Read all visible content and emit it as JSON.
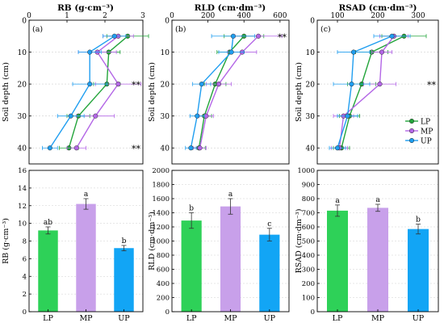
{
  "chart_data": [
    {
      "type": "line",
      "panel": "(a)",
      "title": "RB (g·cm⁻³)",
      "ylabel": "Soil depth (cm)",
      "xlim": [
        0,
        3
      ],
      "xticks": [
        0,
        1,
        2,
        3
      ],
      "ylim": [
        0,
        45
      ],
      "yticks": [
        0,
        10,
        20,
        30,
        40
      ],
      "y": [
        5,
        10,
        20,
        30,
        40
      ],
      "series": [
        {
          "name": "LP",
          "color": "#22a43a",
          "values": [
            2.6,
            2.1,
            2.05,
            1.3,
            1.05
          ],
          "err": [
            0.55,
            0.3,
            0.35,
            0.3,
            0.25
          ]
        },
        {
          "name": "MP",
          "color": "#b366e6",
          "values": [
            2.35,
            1.8,
            2.35,
            1.75,
            1.25
          ],
          "err": [
            0.4,
            0.5,
            0.6,
            0.5,
            0.25
          ]
        },
        {
          "name": "UP",
          "color": "#1f9ef0",
          "values": [
            2.25,
            1.6,
            1.6,
            1.1,
            0.55
          ],
          "err": [
            0.3,
            0.3,
            0.45,
            0.35,
            0.2
          ]
        }
      ],
      "annotations": [
        {
          "text": "**",
          "y": 20
        },
        {
          "text": "**",
          "y": 40
        }
      ]
    },
    {
      "type": "line",
      "panel": "(b)",
      "title": "RLD (cm·dm⁻³)",
      "ylabel": "Soil depth (cm)",
      "xlim": [
        0,
        650
      ],
      "xticks": [
        0,
        200,
        400,
        600
      ],
      "ylim": [
        0,
        45
      ],
      "yticks": [
        0,
        10,
        20,
        30,
        40
      ],
      "y": [
        5,
        10,
        20,
        30,
        40
      ],
      "series": [
        {
          "name": "LP",
          "color": "#22a43a",
          "values": [
            400,
            320,
            240,
            180,
            150
          ],
          "err": [
            110,
            70,
            60,
            40,
            35
          ]
        },
        {
          "name": "MP",
          "color": "#b366e6",
          "values": [
            480,
            390,
            260,
            190,
            155
          ],
          "err": [
            130,
            80,
            70,
            40,
            35
          ]
        },
        {
          "name": "UP",
          "color": "#1f9ef0",
          "values": [
            340,
            330,
            165,
            140,
            105
          ],
          "err": [
            120,
            70,
            50,
            40,
            30
          ]
        }
      ],
      "annotations": [
        {
          "text": "**",
          "y": 5
        }
      ]
    },
    {
      "type": "line",
      "panel": "(c)",
      "title": "RSAD (cm·dm⁻³)",
      "ylabel": "Soil depth (cm)",
      "xlim": [
        50,
        350
      ],
      "xticks": [
        100,
        200,
        300
      ],
      "ylim": [
        0,
        45
      ],
      "yticks": [
        0,
        10,
        20,
        30,
        40
      ],
      "y": [
        5,
        10,
        20,
        30,
        40
      ],
      "series": [
        {
          "name": "LP",
          "color": "#22a43a",
          "values": [
            265,
            185,
            160,
            130,
            110
          ],
          "err": [
            55,
            40,
            35,
            25,
            20
          ]
        },
        {
          "name": "MP",
          "color": "#b366e6",
          "values": [
            240,
            210,
            205,
            115,
            105
          ],
          "err": [
            35,
            25,
            40,
            25,
            20
          ]
        },
        {
          "name": "UP",
          "color": "#1f9ef0",
          "values": [
            235,
            140,
            135,
            125,
            100
          ],
          "err": [
            45,
            40,
            45,
            25,
            20
          ]
        }
      ],
      "annotations": [
        {
          "text": "**",
          "y": 20
        }
      ],
      "legend": {
        "placement": "bottom-right",
        "entries": [
          "LP",
          "MP",
          "UP"
        ]
      }
    },
    {
      "type": "bar",
      "ylabel": "RB (g·cm⁻³)",
      "categories": [
        "LP",
        "MP",
        "UP"
      ],
      "values": [
        9.2,
        12.2,
        7.2
      ],
      "err": [
        0.4,
        0.6,
        0.3
      ],
      "letters": [
        "ab",
        "a",
        "b"
      ],
      "colors": [
        "#2ed158",
        "#c8a0ea",
        "#12a5f5"
      ],
      "ylim": [
        0,
        16
      ],
      "yticks": [
        0,
        2,
        4,
        6,
        8,
        10,
        12,
        14,
        16
      ]
    },
    {
      "type": "bar",
      "ylabel": "RLD (cm·dm⁻³)",
      "categories": [
        "LP",
        "MP",
        "UP"
      ],
      "values": [
        1290,
        1490,
        1090
      ],
      "err": [
        110,
        110,
        90
      ],
      "letters": [
        "b",
        "a",
        "c"
      ],
      "colors": [
        "#2ed158",
        "#c8a0ea",
        "#12a5f5"
      ],
      "ylim": [
        0,
        2000
      ],
      "yticks": [
        0,
        200,
        400,
        600,
        800,
        1000,
        1200,
        1400,
        1600,
        1800,
        2000
      ]
    },
    {
      "type": "bar",
      "ylabel": "RSAD (cm·dm⁻³)",
      "categories": [
        "LP",
        "MP",
        "UP"
      ],
      "values": [
        715,
        735,
        585
      ],
      "err": [
        40,
        25,
        35
      ],
      "letters": [
        "a",
        "a",
        "b"
      ],
      "colors": [
        "#2ed158",
        "#c8a0ea",
        "#12a5f5"
      ],
      "ylim": [
        0,
        1000
      ],
      "yticks": [
        0,
        100,
        200,
        300,
        400,
        500,
        600,
        700,
        800,
        900,
        1000
      ]
    }
  ]
}
